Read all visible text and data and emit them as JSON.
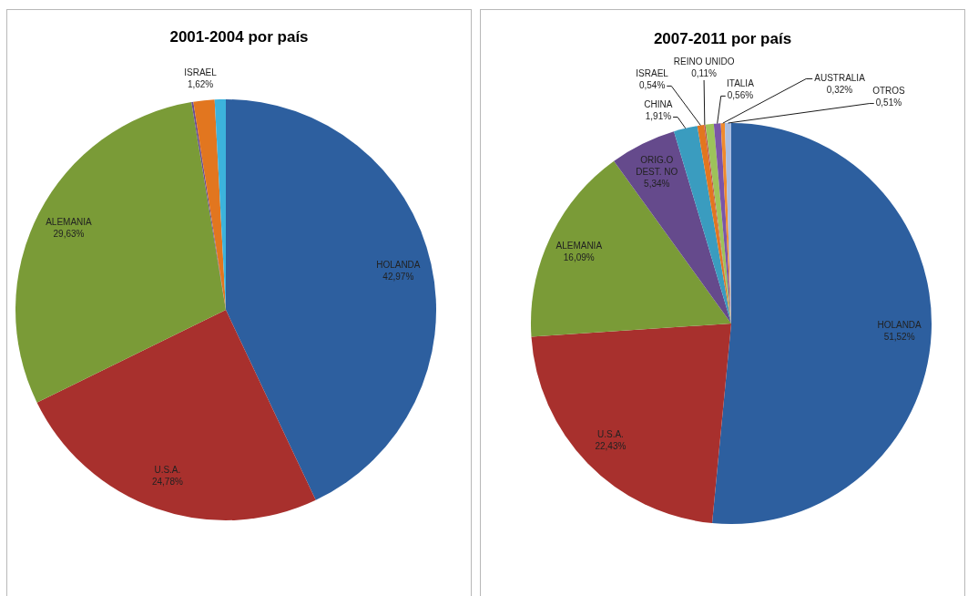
{
  "chart_data": [
    {
      "type": "pie",
      "title": "2001-2004 por país",
      "categories": [
        "HOLANDA",
        "U.S.A.",
        "ALEMANIA",
        null,
        "ISRAEL",
        null
      ],
      "values": [
        42.97,
        24.78,
        29.63,
        0.15,
        1.62,
        0.85
      ],
      "value_labels": [
        "42,97%",
        "24,78%",
        "29,63%",
        null,
        "1,62%",
        null
      ],
      "colors": [
        "#2d5f9f",
        "#a8302d",
        "#7a9b37",
        "#6a4f93",
        "#e2761f",
        "#3cb3dc"
      ]
    },
    {
      "type": "pie",
      "title": "2007-2011 por país",
      "categories": [
        "HOLANDA",
        "U.S.A.",
        "ALEMANIA",
        "ORIG.O DEST. NO",
        "CHINA",
        "ISRAEL",
        "REINO UNIDO",
        null,
        "ITALIA",
        "AUSTRALIA",
        "OTROS"
      ],
      "values": [
        51.52,
        22.43,
        16.09,
        5.34,
        1.91,
        0.54,
        0.11,
        0.67,
        0.56,
        0.32,
        0.51
      ],
      "value_labels": [
        "51,52%",
        "22,43%",
        "16,09%",
        "5,34%",
        "1,91%",
        "0,54%",
        "0,11%",
        null,
        "0,56%",
        "0,32%",
        "0,51%"
      ],
      "colors": [
        "#2d5f9f",
        "#a8302d",
        "#7a9b37",
        "#654a8c",
        "#3a9cbf",
        "#e2761f",
        "#c0504d",
        "#9dc35a",
        "#7a55a8",
        "#f08a2c",
        "#a9bde0"
      ]
    }
  ]
}
